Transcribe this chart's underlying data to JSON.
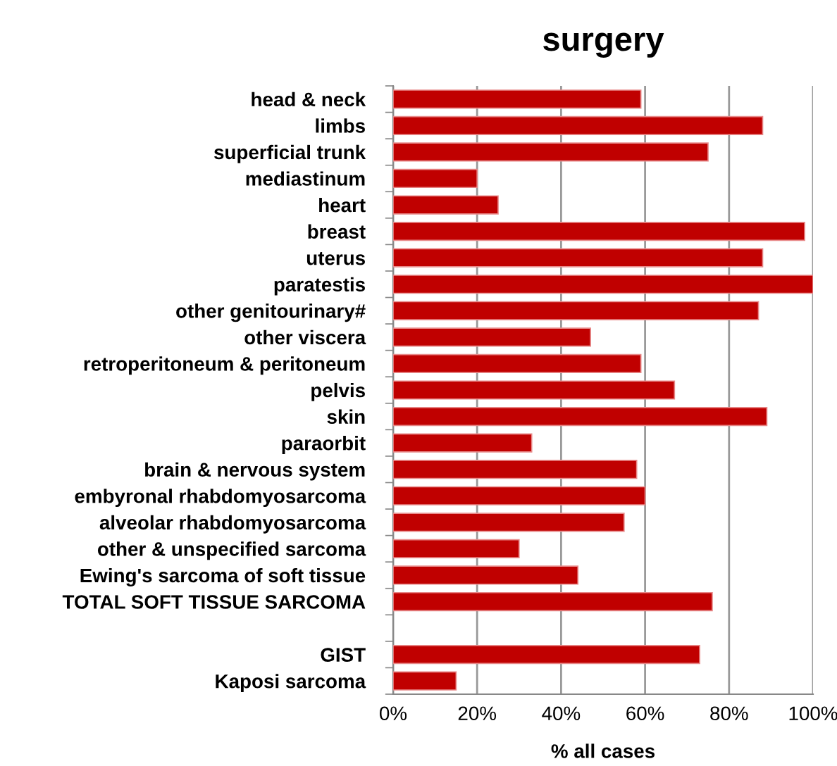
{
  "chart_data": {
    "type": "bar",
    "orientation": "horizontal",
    "title": "surgery",
    "xlabel": "% all cases",
    "categories": [
      "head & neck",
      "limbs",
      "superficial trunk",
      "mediastinum",
      "heart",
      "breast",
      "uterus",
      "paratestis",
      "other genitourinary#",
      "other viscera",
      "retroperitoneum & peritoneum",
      "pelvis",
      "skin",
      "paraorbit",
      "brain & nervous system",
      "embyronal rhabdomyosarcoma",
      "alveolar rhabdomyosarcoma",
      "other & unspecified sarcoma",
      "Ewing's sarcoma of soft tissue",
      "TOTAL SOFT TISSUE SARCOMA",
      null,
      "GIST",
      "Kaposi sarcoma"
    ],
    "values": [
      59,
      88,
      75,
      20,
      25,
      98,
      88,
      100,
      87,
      47,
      59,
      67,
      89,
      33,
      58,
      60,
      55,
      30,
      44,
      76,
      null,
      73,
      15
    ],
    "color": "#c00000",
    "xlim": [
      0,
      100
    ],
    "xticks": [
      {
        "value": 0,
        "label": "0%"
      },
      {
        "value": 20,
        "label": "20%"
      },
      {
        "value": 40,
        "label": "40%"
      },
      {
        "value": 60,
        "label": "60%"
      },
      {
        "value": 80,
        "label": "80%"
      },
      {
        "value": 100,
        "label": "100%"
      }
    ],
    "grid": "x"
  }
}
